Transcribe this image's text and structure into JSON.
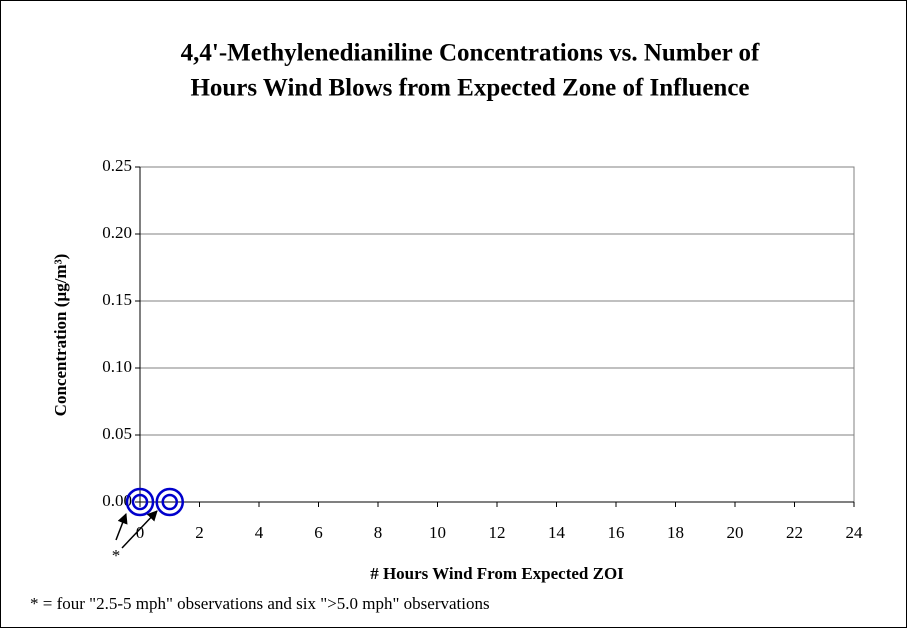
{
  "chart_data": {
    "type": "scatter",
    "title": [
      "4,4'-Methylenedianiline Concentrations vs. Number of",
      "Hours Wind Blows from Expected Zone of Influence"
    ],
    "x_label": "# Hours Wind From Expected ZOI",
    "y_label": "Concentration (µg/m³)",
    "x": [
      0,
      1
    ],
    "values": [
      0,
      0
    ],
    "color": "#0000cc",
    "xlim": [
      0,
      24
    ],
    "xticks": [
      0,
      2,
      4,
      6,
      8,
      10,
      12,
      14,
      16,
      18,
      20,
      22,
      24
    ],
    "ylim": [
      0,
      0.25
    ],
    "yticks": [
      {
        "value": 0,
        "label": "0.00"
      },
      {
        "value": 0.05,
        "label": "0.05"
      },
      {
        "value": 0.1,
        "label": "0.10"
      },
      {
        "value": 0.15,
        "label": "0.15"
      },
      {
        "value": 0.2,
        "label": "0.20"
      },
      {
        "value": 0.25,
        "label": "0.25"
      }
    ],
    "grid": true,
    "annotations": [
      "*",
      "* = four \"2.5-5 mph\" observations and six \">5.0 mph\" observations"
    ]
  }
}
